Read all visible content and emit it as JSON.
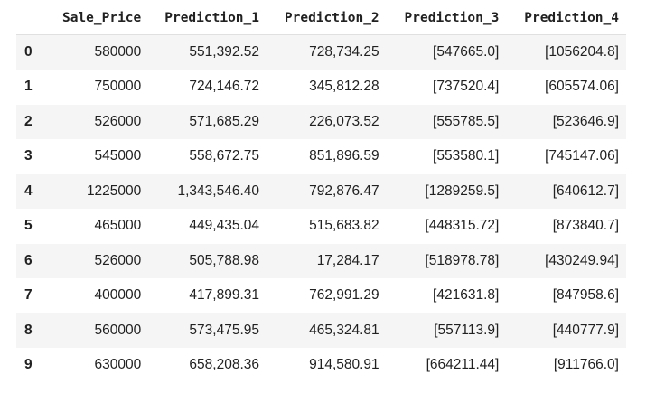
{
  "dataframe": {
    "columns": [
      "",
      "Sale_Price",
      "Prediction_1",
      "Prediction_2",
      "Prediction_3",
      "Prediction_4"
    ],
    "rows": [
      {
        "index": "0",
        "cells": [
          "580000",
          "551,392.52",
          "728,734.25",
          "[547665.0]",
          "[1056204.8]"
        ]
      },
      {
        "index": "1",
        "cells": [
          "750000",
          "724,146.72",
          "345,812.28",
          "[737520.4]",
          "[605574.06]"
        ]
      },
      {
        "index": "2",
        "cells": [
          "526000",
          "571,685.29",
          "226,073.52",
          "[555785.5]",
          "[523646.9]"
        ]
      },
      {
        "index": "3",
        "cells": [
          "545000",
          "558,672.75",
          "851,896.59",
          "[553580.1]",
          "[745147.06]"
        ]
      },
      {
        "index": "4",
        "cells": [
          "1225000",
          "1,343,546.40",
          "792,876.47",
          "[1289259.5]",
          "[640612.7]"
        ]
      },
      {
        "index": "5",
        "cells": [
          "465000",
          "449,435.04",
          "515,683.82",
          "[448315.72]",
          "[873840.7]"
        ]
      },
      {
        "index": "6",
        "cells": [
          "526000",
          "505,788.98",
          "17,284.17",
          "[518978.78]",
          "[430249.94]"
        ]
      },
      {
        "index": "7",
        "cells": [
          "400000",
          "417,899.31",
          "762,991.29",
          "[421631.8]",
          "[847958.6]"
        ]
      },
      {
        "index": "8",
        "cells": [
          "560000",
          "573,475.95",
          "465,324.81",
          "[557113.9]",
          "[440777.9]"
        ]
      },
      {
        "index": "9",
        "cells": [
          "630000",
          "658,208.36",
          "914,580.91",
          "[664211.44]",
          "[911766.0]"
        ]
      }
    ]
  },
  "colors": {
    "stripe": "#f5f5f5",
    "text": "#212121",
    "header_border": "#e0e0e0"
  }
}
